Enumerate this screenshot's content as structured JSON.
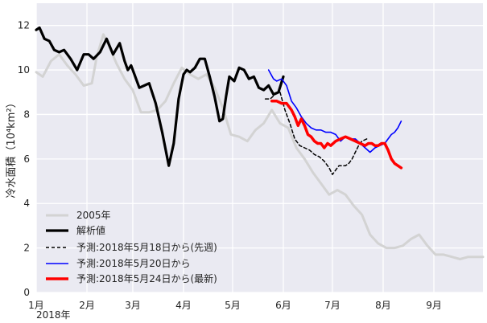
{
  "chart_data": {
    "type": "line",
    "ylabel": "冷水面積（10⁴km²）",
    "ylim": [
      0,
      13
    ],
    "yticks": [
      "0",
      "2",
      "4",
      "6",
      "8",
      "10",
      "12"
    ],
    "xticks": [
      "1月",
      "2月",
      "3月",
      "4月",
      "5月",
      "6月",
      "7月",
      "8月",
      "9月"
    ],
    "x_year_label": "2018年",
    "x_unit": "day of year",
    "xlim": [
      1,
      274
    ],
    "grid": true,
    "legend_position": "lower-left",
    "series": [
      {
        "name": "2005年",
        "color": "#d3d3d3",
        "width": 3,
        "dash": "",
        "x": [
          1,
          5,
          10,
          15,
          20,
          25,
          30,
          35,
          38,
          42,
          46,
          50,
          55,
          60,
          65,
          70,
          75,
          80,
          85,
          90,
          95,
          100,
          105,
          110,
          115,
          120,
          125,
          130,
          135,
          140,
          145,
          150,
          155,
          160,
          165,
          170,
          175,
          180,
          185,
          190,
          195,
          200,
          205,
          210,
          215,
          220,
          225,
          230,
          235,
          240,
          245,
          250,
          255,
          260,
          265,
          270,
          274
        ],
        "y": [
          9.9,
          9.7,
          10.4,
          10.7,
          10.2,
          9.8,
          9.3,
          9.4,
          10.6,
          11.6,
          11.0,
          10.3,
          9.6,
          9.1,
          8.1,
          8.1,
          8.2,
          8.6,
          9.4,
          10.1,
          9.8,
          9.6,
          9.8,
          9.2,
          8.3,
          7.1,
          7.0,
          6.8,
          7.3,
          7.6,
          8.2,
          7.6,
          7.4,
          6.5,
          6.0,
          5.4,
          4.9,
          4.4,
          4.6,
          4.4,
          3.9,
          3.5,
          2.6,
          2.2,
          2.0,
          2.0,
          2.1,
          2.4,
          2.6,
          2.1,
          1.7,
          1.7,
          1.6,
          1.5,
          1.6,
          1.6,
          1.6
        ]
      },
      {
        "name": "解析値",
        "color": "#000000",
        "width": 3.2,
        "dash": "",
        "x": [
          1,
          3,
          6,
          9,
          12,
          15,
          18,
          22,
          26,
          30,
          33,
          36,
          40,
          44,
          48,
          52,
          55,
          57,
          59,
          61,
          64,
          67,
          70,
          74,
          78,
          82,
          85,
          88,
          91,
          93,
          95,
          98,
          101,
          104,
          107,
          110,
          113,
          115,
          117,
          119,
          122,
          125,
          128,
          131,
          134,
          137,
          140,
          143,
          146,
          149,
          152
        ],
        "y": [
          11.8,
          11.9,
          11.4,
          11.3,
          10.9,
          10.8,
          10.9,
          10.5,
          10.0,
          10.7,
          10.7,
          10.5,
          10.8,
          11.4,
          10.7,
          11.2,
          10.4,
          10.0,
          10.2,
          9.8,
          9.2,
          9.3,
          9.4,
          8.5,
          7.2,
          5.7,
          6.7,
          8.7,
          9.8,
          10.0,
          9.9,
          10.1,
          10.5,
          10.5,
          9.7,
          8.8,
          7.7,
          7.8,
          8.8,
          9.7,
          9.5,
          10.1,
          10.0,
          9.6,
          9.7,
          9.2,
          9.1,
          9.3,
          8.9,
          9.0,
          9.7
        ]
      },
      {
        "name": "予測:2018年5月18日から(先週)",
        "color": "#000000",
        "width": 1.5,
        "dash": "4,3",
        "x": [
          141,
          144,
          147,
          150,
          153,
          156,
          159,
          162,
          165,
          168,
          171,
          174,
          177,
          180,
          182,
          184,
          186,
          188,
          190,
          192,
          194,
          196,
          198,
          200,
          203
        ],
        "y": [
          8.7,
          8.7,
          8.9,
          9.0,
          8.2,
          7.6,
          6.9,
          6.6,
          6.5,
          6.4,
          6.2,
          6.1,
          5.9,
          5.6,
          5.3,
          5.5,
          5.7,
          5.7,
          5.7,
          5.8,
          6.0,
          6.3,
          6.6,
          6.8,
          6.9
        ]
      },
      {
        "name": "予測:2018年5月20日から",
        "color": "#0000ff",
        "width": 1.6,
        "dash": "",
        "x": [
          143,
          146,
          148,
          151,
          154,
          157,
          160,
          163,
          166,
          169,
          172,
          175,
          178,
          181,
          184,
          187,
          190,
          193,
          196,
          199,
          202,
          205,
          208,
          211,
          214,
          216,
          218,
          220,
          222,
          224
        ],
        "y": [
          10.0,
          9.6,
          9.5,
          9.6,
          9.3,
          8.6,
          8.3,
          7.9,
          7.6,
          7.4,
          7.3,
          7.3,
          7.2,
          7.2,
          7.1,
          6.8,
          7.0,
          6.9,
          6.9,
          6.7,
          6.5,
          6.3,
          6.5,
          6.6,
          6.7,
          6.9,
          7.1,
          7.2,
          7.4,
          7.7
        ]
      },
      {
        "name": "予測:2018年5月24日から(最新)",
        "color": "#ff0000",
        "width": 3.5,
        "dash": "",
        "x": [
          145,
          148,
          151,
          154,
          157,
          159,
          161,
          163,
          165,
          167,
          169,
          171,
          173,
          175,
          177,
          179,
          181,
          184,
          187,
          190,
          193,
          196,
          199,
          202,
          204,
          206,
          208,
          210,
          212,
          214,
          216,
          218,
          220,
          222,
          224
        ],
        "y": [
          8.6,
          8.6,
          8.5,
          8.5,
          8.2,
          7.9,
          7.5,
          7.8,
          7.5,
          7.1,
          7.0,
          6.8,
          6.7,
          6.7,
          6.5,
          6.7,
          6.6,
          6.8,
          6.9,
          7.0,
          6.9,
          6.8,
          6.7,
          6.6,
          6.7,
          6.7,
          6.6,
          6.6,
          6.7,
          6.7,
          6.4,
          6.0,
          5.8,
          5.7,
          5.6
        ]
      }
    ]
  }
}
